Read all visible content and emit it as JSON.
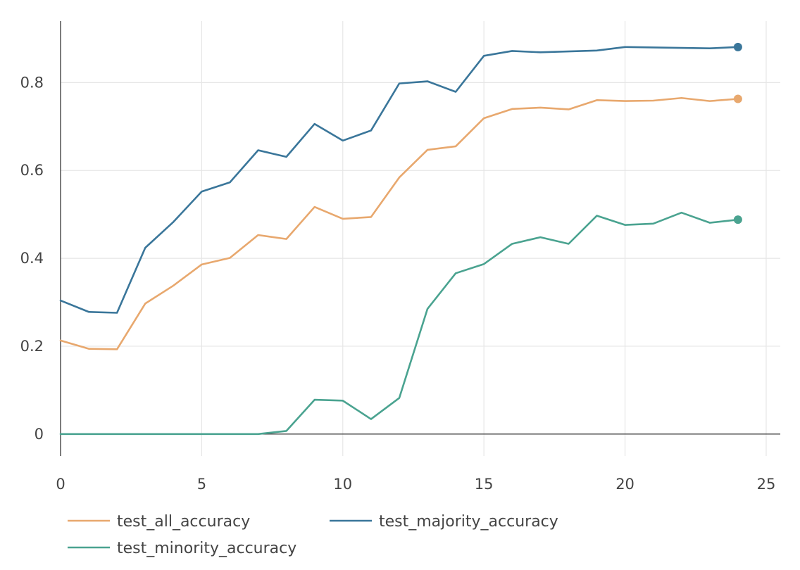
{
  "chart_data": {
    "type": "line",
    "title": "",
    "xlabel": "",
    "ylabel": "",
    "xlim": [
      0,
      25.5
    ],
    "ylim": [
      -0.05,
      0.94
    ],
    "x_ticks": [
      0,
      5,
      10,
      15,
      20,
      25
    ],
    "y_ticks": [
      0,
      0.2,
      0.4,
      0.6,
      0.8
    ],
    "x_tick_labels": [
      "0",
      "5",
      "10",
      "15",
      "20",
      "25"
    ],
    "y_tick_labels": [
      "0",
      "0.2",
      "0.4",
      "0.6",
      "0.8"
    ],
    "grid": true,
    "legend_position": "bottom",
    "x": [
      0,
      1,
      2,
      3,
      4,
      5,
      6,
      7,
      8,
      9,
      10,
      11,
      12,
      13,
      14,
      15,
      16,
      17,
      18,
      19,
      20,
      21,
      22,
      23,
      24
    ],
    "series": [
      {
        "name": "test_all_accuracy",
        "color": "#e8a86e",
        "values": [
          0.213,
          0.194,
          0.193,
          0.297,
          0.338,
          0.386,
          0.401,
          0.453,
          0.444,
          0.517,
          0.49,
          0.494,
          0.584,
          0.647,
          0.655,
          0.719,
          0.74,
          0.743,
          0.739,
          0.76,
          0.758,
          0.759,
          0.765,
          0.758,
          0.763
        ]
      },
      {
        "name": "test_majority_accuracy",
        "color": "#3a769a",
        "values": [
          0.304,
          0.278,
          0.276,
          0.424,
          0.483,
          0.552,
          0.573,
          0.646,
          0.631,
          0.706,
          0.668,
          0.691,
          0.798,
          0.803,
          0.779,
          0.861,
          0.872,
          0.869,
          0.871,
          0.873,
          0.881,
          0.88,
          0.879,
          0.878,
          0.881
        ]
      },
      {
        "name": "test_minority_accuracy",
        "color": "#4aa390",
        "values": [
          0,
          0,
          0,
          0,
          0,
          0,
          0,
          0,
          0.007,
          0.078,
          0.076,
          0.034,
          0.082,
          0.285,
          0.366,
          0.387,
          0.433,
          0.448,
          0.433,
          0.497,
          0.476,
          0.479,
          0.504,
          0.481,
          0.488
        ]
      }
    ]
  }
}
